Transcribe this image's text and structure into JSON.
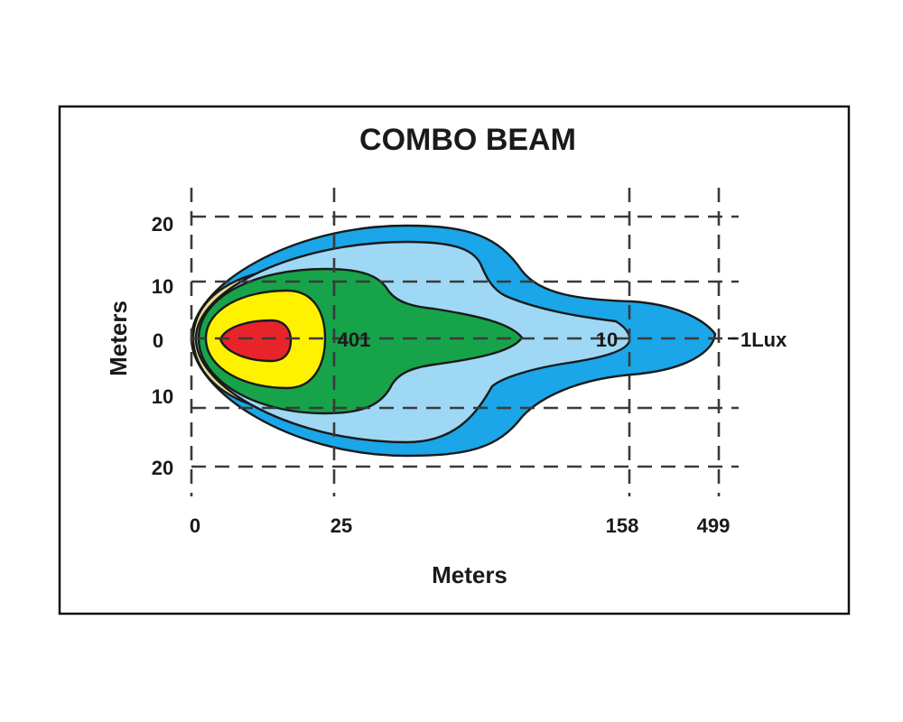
{
  "chart_data": {
    "type": "isolux_beam_pattern",
    "title": "COMBO BEAM",
    "xlabel": "Meters",
    "ylabel": "Meters",
    "x_ticks": [
      "0",
      "25",
      "158",
      "499"
    ],
    "y_ticks": [
      "20",
      "10",
      "0",
      "10",
      "20"
    ],
    "grid": true,
    "zones": [
      {
        "label": "1Lux",
        "color": "#1aa6e8",
        "reach_tick": "499"
      },
      {
        "label": "",
        "color": "#e6dd94",
        "reach_tick": ""
      },
      {
        "label": "10",
        "color": "#9ed8f5",
        "reach_tick": "158"
      },
      {
        "label": "401",
        "color": "#17a34a",
        "reach_tick": ""
      },
      {
        "label": "",
        "color": "#fff200",
        "reach_tick": "25"
      },
      {
        "label": "",
        "color": "#e8242a",
        "reach_tick": ""
      }
    ]
  }
}
